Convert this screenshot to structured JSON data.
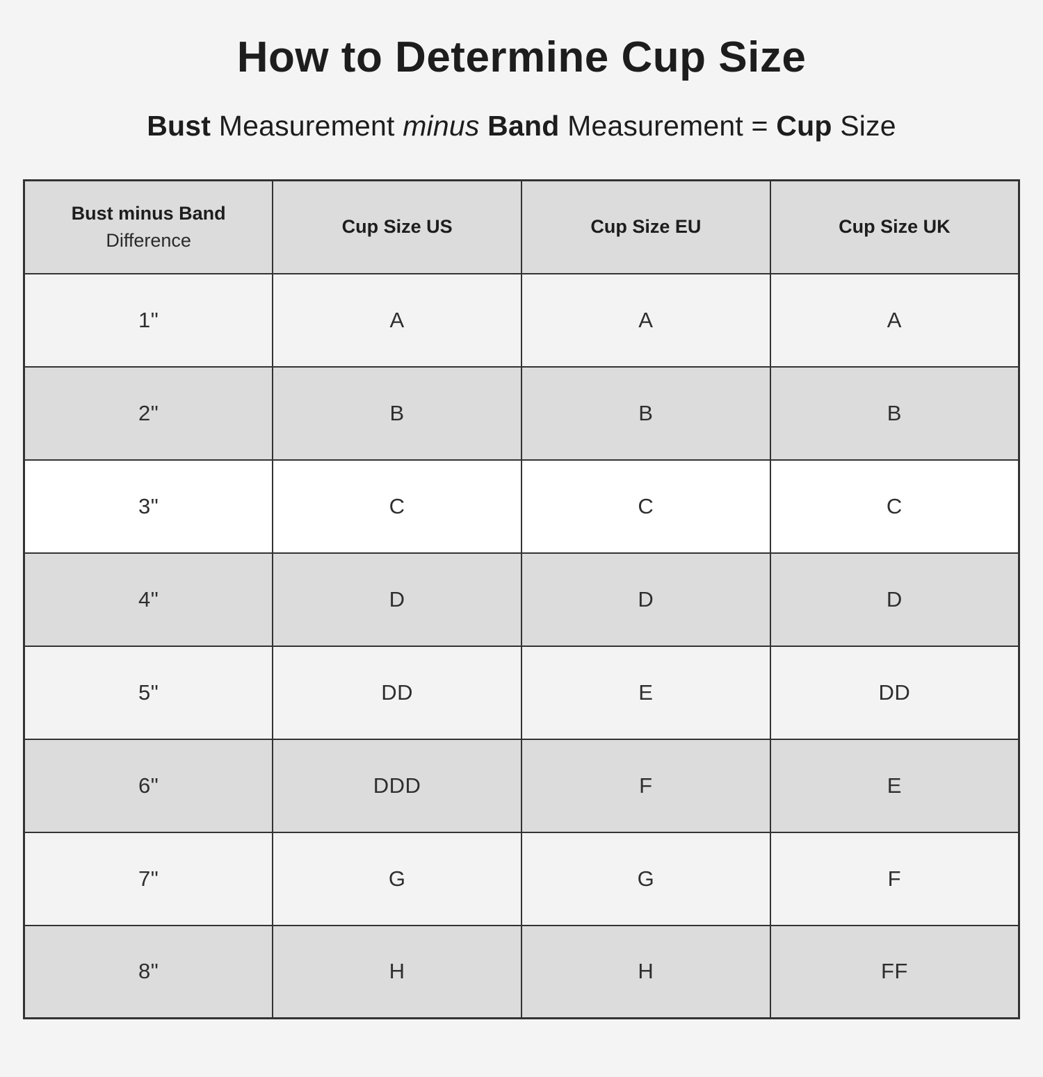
{
  "title": "How to Determine Cup Size",
  "subtitle": {
    "word_bust": "Bust",
    "word_measurement_1": "Measurement",
    "word_minus": "minus",
    "word_band": "Band",
    "word_measurement_2": "Measurement",
    "word_equals": "=",
    "word_cup": "Cup",
    "word_size": "Size"
  },
  "headers": {
    "difference_line1": "Bust minus Band",
    "difference_line2": "Difference",
    "cup_us": "Cup Size US",
    "cup_eu": "Cup Size EU",
    "cup_uk": "Cup Size UK"
  },
  "chart_data": {
    "type": "table",
    "title": "How to Determine Cup Size",
    "subtitle": "Bust Measurement minus Band Measurement = Cup Size",
    "columns": [
      "Bust minus Band Difference",
      "Cup Size US",
      "Cup Size EU",
      "Cup Size UK"
    ],
    "rows": [
      [
        "1\"",
        "A",
        "A",
        "A"
      ],
      [
        "2\"",
        "B",
        "B",
        "B"
      ],
      [
        "3\"",
        "C",
        "C",
        "C"
      ],
      [
        "4\"",
        "D",
        "D",
        "D"
      ],
      [
        "5\"",
        "DD",
        "E",
        "DD"
      ],
      [
        "6\"",
        "DDD",
        "F",
        "E"
      ],
      [
        "7\"",
        "G",
        "G",
        "F"
      ],
      [
        "8\"",
        "H",
        "H",
        "FF"
      ]
    ]
  },
  "colors": {
    "page_bg": "#f4f4f5",
    "row_gray": "#dcdcdc",
    "row_light": "#f3f3f4",
    "row_white": "#ffffff",
    "border": "#333333",
    "text": "#1d1d1d"
  }
}
